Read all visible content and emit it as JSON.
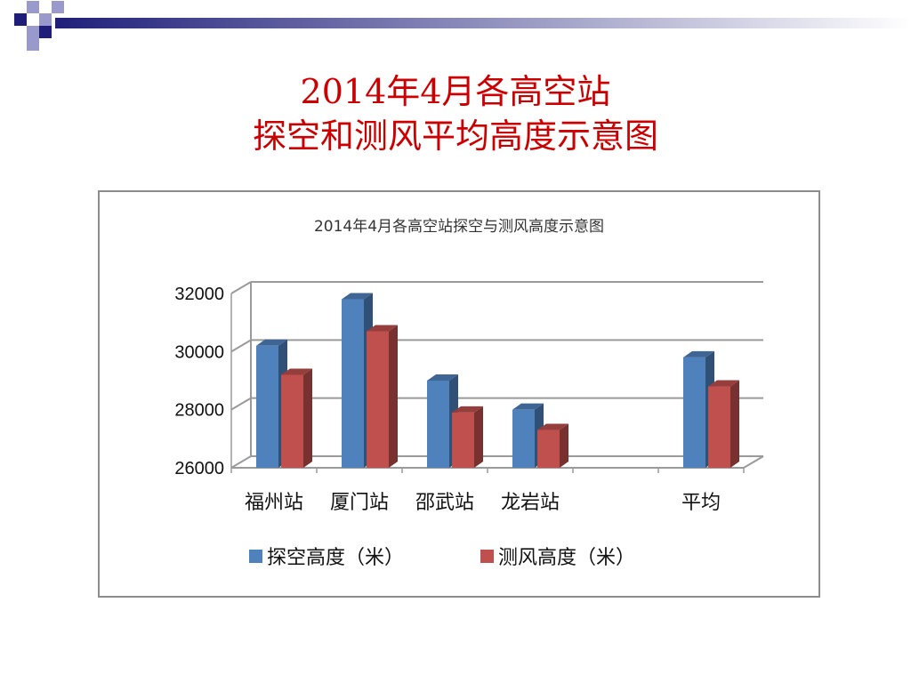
{
  "slide": {
    "title_line1": "2014年4月各高空站",
    "title_line2": "探空和测风平均高度示意图"
  },
  "colors": {
    "title": "#cc0000",
    "series1": "#4f81bd",
    "series2": "#c0504d",
    "grid": "#9a9a9a",
    "deco_navy": "#1f1f7a",
    "deco_lilac": "#9999cc"
  },
  "chart_data": {
    "type": "bar",
    "title": "2014年4月各高空站探空与测风高度示意图",
    "categories": [
      "福州站",
      "厦门站",
      "邵武站",
      "龙岩站",
      "",
      "平均"
    ],
    "series": [
      {
        "name": "探空高度（米）",
        "values": [
          30200,
          31800,
          29000,
          28000,
          null,
          29800
        ]
      },
      {
        "name": "测风高度（米）",
        "values": [
          29200,
          30700,
          27900,
          27300,
          null,
          28800
        ]
      }
    ],
    "y_ticks": [
      "26000",
      "28000",
      "30000",
      "32000"
    ],
    "ylim": [
      26000,
      32000
    ],
    "grid": true,
    "legend": "bottom",
    "style": "3d-clustered"
  }
}
